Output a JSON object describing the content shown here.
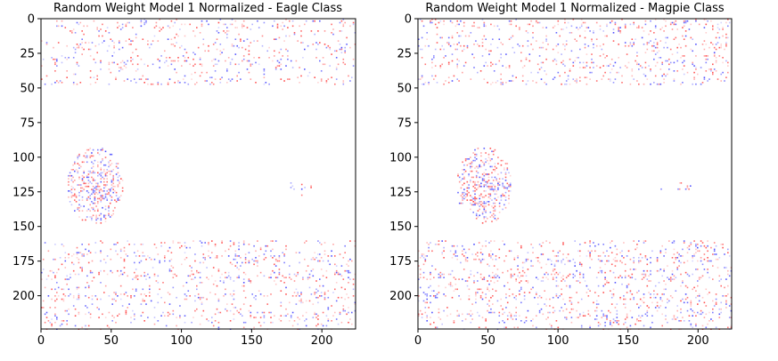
{
  "chart_data": [
    {
      "type": "heatmap",
      "title": "Random Weight Model 1 Normalized - Eagle Class",
      "xlim": [
        0,
        224
      ],
      "ylim": [
        224,
        0
      ],
      "xticks": [
        0,
        50,
        100,
        150,
        200
      ],
      "yticks": [
        0,
        25,
        50,
        75,
        100,
        125,
        150,
        175,
        200
      ],
      "colormap": "bwr",
      "colors": {
        "positive": "#ff0000",
        "negative": "#0000ff",
        "neutral": "#ffffff"
      },
      "grid": false,
      "regions": [
        {
          "label": "top noise band",
          "rows": [
            0,
            47
          ],
          "intensity": 0.35
        },
        {
          "label": "bottom noise band",
          "rows": [
            160,
            224
          ],
          "intensity": 0.45
        },
        {
          "label": "object blob",
          "center": [
            38,
            120
          ],
          "radius": [
            20,
            28
          ],
          "intensity": 0.8
        },
        {
          "label": "faint streak",
          "center": [
            186,
            122
          ],
          "radius": [
            14,
            5
          ],
          "intensity": 0.2
        }
      ]
    },
    {
      "type": "heatmap",
      "title": "Random Weight Model 1 Normalized - Magpie Class",
      "xlim": [
        0,
        224
      ],
      "ylim": [
        224,
        0
      ],
      "xticks": [
        0,
        50,
        100,
        150,
        200
      ],
      "yticks": [
        0,
        25,
        50,
        75,
        100,
        125,
        150,
        175,
        200
      ],
      "colormap": "bwr",
      "colors": {
        "positive": "#ff0000",
        "negative": "#0000ff",
        "neutral": "#ffffff"
      },
      "grid": false,
      "regions": [
        {
          "label": "top noise band",
          "rows": [
            0,
            47
          ],
          "intensity": 0.45
        },
        {
          "label": "bottom noise band",
          "rows": [
            160,
            224
          ],
          "intensity": 0.55
        },
        {
          "label": "object blob",
          "center": [
            47,
            120
          ],
          "radius": [
            20,
            28
          ],
          "intensity": 0.8
        },
        {
          "label": "faint streak",
          "center": [
            185,
            122
          ],
          "radius": [
            14,
            5
          ],
          "intensity": 0.2
        }
      ]
    }
  ]
}
